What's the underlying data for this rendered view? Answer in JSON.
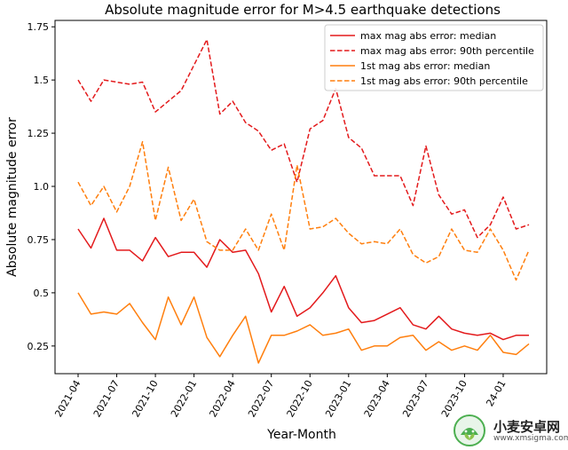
{
  "chart_data": {
    "type": "line",
    "title": "Absolute magnitude error for M>4.5 earthquake detections",
    "xlabel": "Year-Month",
    "ylabel": "Absolute magnitude error",
    "ylim": [
      0.12,
      1.78
    ],
    "yticks": [
      0.25,
      0.5,
      0.75,
      1.0,
      1.25,
      1.5,
      1.75
    ],
    "ytick_labels": [
      "0.25",
      "0.5",
      "0.75",
      "1.0",
      "1.25",
      "1.5",
      "1.75"
    ],
    "x_months": [
      "2021-04",
      "2021-05",
      "2021-06",
      "2021-07",
      "2021-08",
      "2021-09",
      "2021-10",
      "2021-11",
      "2021-12",
      "2022-01",
      "2022-02",
      "2022-03",
      "2022-04",
      "2022-05",
      "2022-06",
      "2022-07",
      "2022-08",
      "2022-09",
      "2022-10",
      "2022-11",
      "2022-12",
      "2023-01",
      "2023-02",
      "2023-03",
      "2023-04",
      "2023-05",
      "2023-06",
      "2023-07",
      "2023-08",
      "2023-09",
      "2023-10",
      "2023-11",
      "2023-12",
      "2024-01",
      "2024-02",
      "2024-03"
    ],
    "xticks": [
      {
        "index": 0,
        "label": "2021-04"
      },
      {
        "index": 3,
        "label": "2021-07"
      },
      {
        "index": 6,
        "label": "2021-10"
      },
      {
        "index": 9,
        "label": "2022-01"
      },
      {
        "index": 12,
        "label": "2022-04"
      },
      {
        "index": 15,
        "label": "2022-07"
      },
      {
        "index": 18,
        "label": "2022-10"
      },
      {
        "index": 21,
        "label": "2023-01"
      },
      {
        "index": 24,
        "label": "2023-04"
      },
      {
        "index": 27,
        "label": "2023-07"
      },
      {
        "index": 30,
        "label": "2023-10"
      },
      {
        "index": 33,
        "label": "24-01"
      }
    ],
    "legend_position": "top-right",
    "series": [
      {
        "name": "max mag abs error: median",
        "color": "#e31a1c",
        "dash": "solid",
        "values": [
          0.8,
          0.71,
          0.85,
          0.7,
          0.7,
          0.65,
          0.76,
          0.67,
          0.69,
          0.69,
          0.62,
          0.75,
          0.69,
          0.7,
          0.59,
          0.41,
          0.53,
          0.39,
          0.43,
          0.5,
          0.58,
          0.43,
          0.36,
          0.37,
          0.4,
          0.43,
          0.35,
          0.33,
          0.39,
          0.33,
          0.31,
          0.3,
          0.31,
          0.28,
          0.3,
          0.3
        ]
      },
      {
        "name": "max mag abs error: 90th percentile",
        "color": "#e31a1c",
        "dash": "dashed",
        "values": [
          1.5,
          1.4,
          1.5,
          1.49,
          1.48,
          1.49,
          1.35,
          1.4,
          1.45,
          1.57,
          1.69,
          1.34,
          1.4,
          1.3,
          1.26,
          1.17,
          1.2,
          1.02,
          1.27,
          1.31,
          1.46,
          1.23,
          1.18,
          1.05,
          1.05,
          1.05,
          0.91,
          1.19,
          0.96,
          0.87,
          0.89,
          0.76,
          0.82,
          0.95,
          0.8,
          0.82
        ]
      },
      {
        "name": "1st mag abs error: median",
        "color": "#ff7f0e",
        "dash": "solid",
        "values": [
          0.5,
          0.4,
          0.41,
          0.4,
          0.45,
          0.36,
          0.28,
          0.48,
          0.35,
          0.48,
          0.29,
          0.2,
          0.3,
          0.39,
          0.17,
          0.3,
          0.3,
          0.32,
          0.35,
          0.3,
          0.31,
          0.33,
          0.23,
          0.25,
          0.25,
          0.29,
          0.3,
          0.23,
          0.27,
          0.23,
          0.25,
          0.23,
          0.3,
          0.22,
          0.21,
          0.26
        ]
      },
      {
        "name": "1st mag abs error: 90th percentile",
        "color": "#ff7f0e",
        "dash": "dashed",
        "values": [
          1.02,
          0.91,
          1.0,
          0.88,
          1.0,
          1.21,
          0.84,
          1.09,
          0.84,
          0.94,
          0.74,
          0.7,
          0.7,
          0.8,
          0.7,
          0.87,
          0.7,
          1.1,
          0.8,
          0.81,
          0.85,
          0.78,
          0.73,
          0.74,
          0.73,
          0.8,
          0.68,
          0.64,
          0.67,
          0.8,
          0.7,
          0.69,
          0.8,
          0.7,
          0.56,
          0.7
        ]
      }
    ]
  },
  "watermark": {
    "text_cn": "小麦安卓网",
    "text_url": "www.xmsigma.com",
    "logo_color": "#4caf50"
  }
}
